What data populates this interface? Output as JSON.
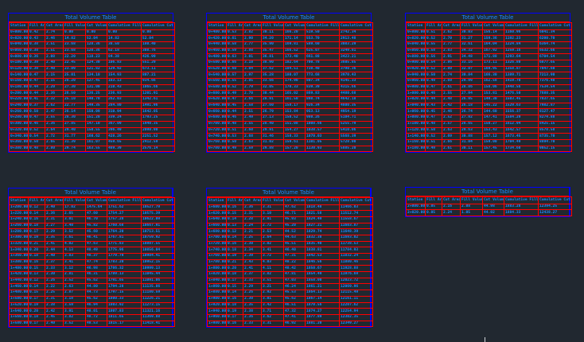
{
  "headers": [
    "Station",
    "Fill Area",
    "Cut Area",
    "Fill Volume",
    "Cut Volume",
    "Cumulative Fill Vol",
    "Cumulative Cut Vol"
  ],
  "colors": {
    "background": "#212830",
    "text": "#1a8cff",
    "grid": "#ff0000",
    "border": "#0000ff"
  },
  "tables": [
    {
      "title": "Total Volume Table",
      "rows": [
        [
          "0+000.00",
          "0.42",
          "2.74",
          "0.00",
          "0.00",
          "0.00",
          "0.00"
        ],
        [
          "0+020.00",
          "0.43",
          "2.46",
          "14.82",
          "52.04",
          "14.82",
          "52.04"
        ],
        [
          "0+040.00",
          "0.38",
          "2.51",
          "23.68",
          "128.36",
          "38.50",
          "180.40"
        ],
        [
          "0+060.00",
          "0.38",
          "2.51",
          "23.68",
          "128.36",
          "62.18",
          "308.76"
        ],
        [
          "0+080.00",
          "0.36",
          "2.08",
          "22.20",
          "118.23",
          "84.38",
          "426.99"
        ],
        [
          "0+100.00",
          "0.39",
          "2.40",
          "22.45",
          "124.30",
          "106.83",
          "551.29"
        ],
        [
          "0+120.00",
          "0.39",
          "2.40",
          "23.09",
          "121.82",
          "129.92",
          "673.11"
        ],
        [
          "0+140.00",
          "0.47",
          "2.15",
          "25.01",
          "134.10",
          "154.93",
          "807.21"
        ],
        [
          "0+160.00",
          "0.47",
          "2.15",
          "28.20",
          "127.45",
          "183.13",
          "934.66"
        ],
        [
          "0+180.00",
          "0.44",
          "2.20",
          "27.30",
          "131.00",
          "210.43",
          "1065.66"
        ],
        [
          "0+200.00",
          "0.44",
          "2.36",
          "26.50",
          "136.25",
          "236.93",
          "1201.91"
        ],
        [
          "0+220.00",
          "0.41",
          "2.32",
          "25.10",
          "140.70",
          "262.03",
          "1342.61"
        ],
        [
          "0+240.00",
          "0.37",
          "2.62",
          "22.77",
          "149.35",
          "284.80",
          "1491.96"
        ],
        [
          "0+260.00",
          "0.50",
          "2.47",
          "26.14",
          "150.09",
          "310.94",
          "1642.05"
        ],
        [
          "0+280.00",
          "0.47",
          "2.55",
          "28.30",
          "151.20",
          "339.24",
          "1793.25"
        ],
        [
          "0+300.00",
          "0.46",
          "2.36",
          "27.85",
          "147.10",
          "367.09",
          "1940.35"
        ],
        [
          "0+320.00",
          "0.52",
          "2.64",
          "29.40",
          "150.55",
          "396.49",
          "2090.90"
        ],
        [
          "0+340.00",
          "0.54",
          "2.72",
          "31.77",
          "160.62",
          "428.26",
          "2251.52"
        ],
        [
          "0+360.00",
          "0.50",
          "2.65",
          "31.39",
          "161.07",
          "459.65",
          "2412.59"
        ],
        [
          "0+380.00",
          "0.48",
          "2.80",
          "29.74",
          "163.55",
          "489.39",
          "2576.14"
        ]
      ]
    },
    {
      "title": "Total Volume Table",
      "rows": [
        [
          "0+400.00",
          "0.53",
          "2.82",
          "30.11",
          "166.20",
          "519.50",
          "2742.34"
        ],
        [
          "0+420.00",
          "0.61",
          "2.90",
          "34.20",
          "171.14",
          "553.70",
          "2913.48"
        ],
        [
          "0+440.00",
          "0.58",
          "2.77",
          "35.90",
          "169.81",
          "589.60",
          "3083.29"
        ],
        [
          "0+460.00",
          "0.59",
          "2.88",
          "35.47",
          "166.52",
          "625.07",
          "3249.81"
        ],
        [
          "0+480.00",
          "0.63",
          "3.01",
          "36.81",
          "173.40",
          "661.88",
          "3423.21"
        ],
        [
          "0+500.00",
          "0.66",
          "3.10",
          "38.90",
          "182.64",
          "700.78",
          "3605.85"
        ],
        [
          "0+520.00",
          "0.60",
          "3.04",
          "37.62",
          "184.51",
          "738.40",
          "3790.36"
        ],
        [
          "0+540.00",
          "0.57",
          "2.97",
          "35.28",
          "180.07",
          "773.68",
          "3970.43"
        ],
        [
          "0+560.00",
          "0.55",
          "2.85",
          "33.66",
          "174.90",
          "807.34",
          "4145.33"
        ],
        [
          "0+580.00",
          "0.52",
          "2.79",
          "32.05",
          "170.33",
          "839.39",
          "4315.66"
        ],
        [
          "0+600.00",
          "0.49",
          "2.70",
          "30.44",
          "165.02",
          "869.83",
          "4480.68"
        ],
        [
          "0+620.00",
          "0.47",
          "2.66",
          "28.91",
          "161.50",
          "898.74",
          "4642.18"
        ],
        [
          "0+640.00",
          "0.45",
          "2.58",
          "27.60",
          "158.17",
          "926.34",
          "4800.35"
        ],
        [
          "0+660.00",
          "0.44",
          "2.51",
          "26.79",
          "153.84",
          "953.13",
          "4954.19"
        ],
        [
          "0+680.00",
          "0.46",
          "2.49",
          "27.13",
          "150.52",
          "980.26",
          "5104.71"
        ],
        [
          "0+700.00",
          "0.48",
          "2.55",
          "28.40",
          "151.08",
          "1008.66",
          "5255.79"
        ],
        [
          "0+720.00",
          "0.51",
          "2.60",
          "29.91",
          "154.27",
          "1038.57",
          "5410.06"
        ],
        [
          "0+740.00",
          "0.53",
          "2.68",
          "31.46",
          "158.33",
          "1070.03",
          "5568.39"
        ],
        [
          "0+760.00",
          "0.50",
          "2.63",
          "31.02",
          "159.61",
          "1101.05",
          "5728.00"
        ],
        [
          "0+780.00",
          "0.49",
          "2.59",
          "29.88",
          "157.20",
          "1130.93",
          "5885.20"
        ]
      ]
    },
    {
      "title": "Total Volume Table",
      "rows": [
        [
          "0+800.00",
          "0.51",
          "2.62",
          "30.03",
          "156.14",
          "1160.96",
          "6041.34"
        ],
        [
          "0+820.00",
          "0.52",
          "2.70",
          "31.27",
          "159.36",
          "1192.23",
          "6200.70"
        ],
        [
          "0+840.00",
          "0.55",
          "2.77",
          "32.61",
          "164.04",
          "1224.84",
          "6364.74"
        ],
        [
          "0+860.00",
          "0.58",
          "2.83",
          "34.32",
          "167.92",
          "1259.16",
          "6532.66"
        ],
        [
          "0+880.00",
          "0.56",
          "2.91",
          "34.48",
          "171.88",
          "1293.64",
          "6704.54"
        ],
        [
          "0+900.00",
          "0.54",
          "2.86",
          "33.16",
          "173.11",
          "1326.80",
          "6877.65"
        ],
        [
          "0+920.00",
          "0.52",
          "2.80",
          "32.07",
          "169.95",
          "1358.87",
          "7047.60"
        ],
        [
          "0+940.00",
          "0.50",
          "2.74",
          "30.84",
          "166.30",
          "1389.71",
          "7213.90"
        ],
        [
          "0+960.00",
          "0.49",
          "2.69",
          "29.99",
          "162.58",
          "1419.70",
          "7376.48"
        ],
        [
          "0+980.00",
          "0.47",
          "2.61",
          "28.86",
          "158.06",
          "1448.56",
          "7534.54"
        ],
        [
          "1+000.00",
          "0.46",
          "2.55",
          "27.94",
          "153.81",
          "1476.50",
          "7688.35"
        ],
        [
          "1+020.00",
          "0.44",
          "2.48",
          "26.95",
          "149.30",
          "1503.45",
          "7837.65"
        ],
        [
          "1+040.00",
          "0.43",
          "2.42",
          "26.18",
          "145.22",
          "1529.63",
          "7982.87"
        ],
        [
          "1+060.00",
          "0.45",
          "2.46",
          "26.74",
          "144.60",
          "1556.37",
          "8127.47"
        ],
        [
          "1+080.00",
          "0.47",
          "2.52",
          "27.92",
          "147.41",
          "1584.29",
          "8274.88"
        ],
        [
          "1+100.00",
          "0.48",
          "2.57",
          "28.65",
          "150.27",
          "1612.94",
          "8425.15"
        ],
        [
          "1+120.00",
          "0.50",
          "2.63",
          "29.63",
          "153.43",
          "1642.57",
          "8578.58"
        ],
        [
          "1+140.00",
          "0.52",
          "2.69",
          "30.88",
          "157.12",
          "1673.45",
          "8735.70"
        ],
        [
          "1+160.00",
          "0.51",
          "2.66",
          "31.04",
          "159.00",
          "1704.49",
          "8894.70"
        ],
        [
          "1+180.00",
          "0.49",
          "2.61",
          "30.11",
          "157.45",
          "1734.60",
          "9052.15"
        ]
      ]
    },
    {
      "title": "Total Volume Table",
      "rows": [
        [
          "1+200.00",
          "0.12",
          "2.40",
          "17.02",
          "1475.64",
          "1751.62",
          "10527.79"
        ],
        [
          "1+220.00",
          "0.14",
          "2.36",
          "2.65",
          "47.60",
          "1754.27",
          "10575.39"
        ],
        [
          "1+240.00",
          "0.16",
          "2.31",
          "3.01",
          "46.70",
          "1757.28",
          "10622.09"
        ],
        [
          "1+260.00",
          "0.18",
          "2.27",
          "3.40",
          "45.82",
          "1760.68",
          "10667.91"
        ],
        [
          "1+280.00",
          "0.17",
          "2.29",
          "3.52",
          "45.60",
          "1764.20",
          "10713.51"
        ],
        [
          "1+300.00",
          "0.19",
          "2.35",
          "3.61",
          "46.41",
          "1767.81",
          "10759.92"
        ],
        [
          "1+320.00",
          "0.21",
          "2.41",
          "4.02",
          "47.63",
          "1771.83",
          "10807.55"
        ],
        [
          "1+340.00",
          "0.20",
          "2.44",
          "4.13",
          "48.49",
          "1775.96",
          "10856.04"
        ],
        [
          "1+360.00",
          "0.18",
          "2.40",
          "3.83",
          "48.37",
          "1779.79",
          "10904.41"
        ],
        [
          "1+380.00",
          "0.16",
          "2.37",
          "3.41",
          "47.74",
          "1783.20",
          "10952.15"
        ],
        [
          "1+400.00",
          "0.15",
          "2.33",
          "3.12",
          "46.98",
          "1786.32",
          "10999.13"
        ],
        [
          "1+420.00",
          "0.13",
          "2.30",
          "2.81",
          "46.31",
          "1789.13",
          "11045.44"
        ],
        [
          "1+440.00",
          "0.12",
          "2.26",
          "2.52",
          "45.62",
          "1791.65",
          "11091.06"
        ],
        [
          "1+460.00",
          "0.14",
          "2.22",
          "2.63",
          "44.80",
          "1794.28",
          "11135.86"
        ],
        [
          "1+480.00",
          "0.15",
          "2.25",
          "2.87",
          "44.73",
          "1797.15",
          "11180.59"
        ],
        [
          "1+500.00",
          "0.17",
          "2.31",
          "3.18",
          "45.62",
          "1800.33",
          "11226.21"
        ],
        [
          "1+520.00",
          "0.19",
          "2.38",
          "3.59",
          "46.94",
          "1803.92",
          "11273.15"
        ],
        [
          "1+540.00",
          "0.20",
          "2.42",
          "3.91",
          "48.01",
          "1807.83",
          "11321.16"
        ],
        [
          "1+560.00",
          "0.18",
          "2.45",
          "3.82",
          "48.72",
          "1811.65",
          "11369.88"
        ],
        [
          "1+580.00",
          "0.17",
          "2.40",
          "3.52",
          "48.53",
          "1815.17",
          "11418.41"
        ]
      ]
    },
    {
      "title": "Total Volume Table",
      "rows": [
        [
          "1+600.00",
          "0.16",
          "2.36",
          "3.31",
          "47.62",
          "1818.48",
          "11466.03"
        ],
        [
          "1+620.00",
          "0.15",
          "2.31",
          "3.10",
          "46.71",
          "1821.58",
          "11512.74"
        ],
        [
          "1+640.00",
          "0.14",
          "2.28",
          "2.91",
          "45.93",
          "1824.49",
          "11558.67"
        ],
        [
          "1+660.00",
          "0.13",
          "2.24",
          "2.72",
          "45.20",
          "1827.21",
          "11603.87"
        ],
        [
          "1+680.00",
          "0.12",
          "2.21",
          "2.53",
          "44.52",
          "1829.74",
          "11648.39"
        ],
        [
          "1+700.00",
          "0.14",
          "2.25",
          "2.64",
          "44.63",
          "1832.38",
          "11693.02"
        ],
        [
          "1+720.00",
          "0.16",
          "2.30",
          "3.02",
          "45.51",
          "1835.40",
          "11738.53"
        ],
        [
          "1+740.00",
          "0.18",
          "2.34",
          "3.41",
          "46.40",
          "1838.81",
          "11784.93"
        ],
        [
          "1+760.00",
          "0.19",
          "2.39",
          "3.72",
          "47.31",
          "1842.53",
          "11832.24"
        ],
        [
          "1+780.00",
          "0.21",
          "2.43",
          "4.03",
          "48.22",
          "1846.56",
          "11880.46"
        ],
        [
          "1+800.00",
          "0.20",
          "2.41",
          "4.11",
          "48.42",
          "1850.67",
          "11928.88"
        ],
        [
          "1+820.00",
          "0.18",
          "2.37",
          "3.82",
          "47.81",
          "1854.49",
          "11976.69"
        ],
        [
          "1+840.00",
          "0.17",
          "2.33",
          "3.51",
          "47.03",
          "1858.00",
          "12023.72"
        ],
        [
          "1+860.00",
          "0.15",
          "2.29",
          "3.21",
          "46.24",
          "1861.21",
          "12069.96"
        ],
        [
          "1+880.00",
          "0.14",
          "2.26",
          "2.92",
          "45.53",
          "1864.13",
          "12115.49"
        ],
        [
          "1+900.00",
          "0.16",
          "2.30",
          "3.01",
          "45.62",
          "1867.14",
          "12161.11"
        ],
        [
          "1+920.00",
          "0.18",
          "2.35",
          "3.42",
          "46.51",
          "1870.56",
          "12207.62"
        ],
        [
          "1+940.00",
          "0.19",
          "2.38",
          "3.71",
          "47.32",
          "1874.27",
          "12254.94"
        ],
        [
          "1+960.00",
          "0.17",
          "2.36",
          "3.62",
          "47.41",
          "1877.89",
          "12302.35"
        ],
        [
          "1+980.00",
          "0.16",
          "2.33",
          "3.31",
          "46.92",
          "1881.20",
          "12349.27"
        ]
      ]
    },
    {
      "title": "Total Volume Table",
      "rows": [
        [
          "2+000.00",
          "0.05",
          "2.16",
          "2.08",
          "44.98",
          "1883.28",
          "12394.25"
        ],
        [
          "2+020.00",
          "0.05",
          "2.24",
          "1.05",
          "44.02",
          "1884.33",
          "12438.27"
        ]
      ]
    }
  ]
}
